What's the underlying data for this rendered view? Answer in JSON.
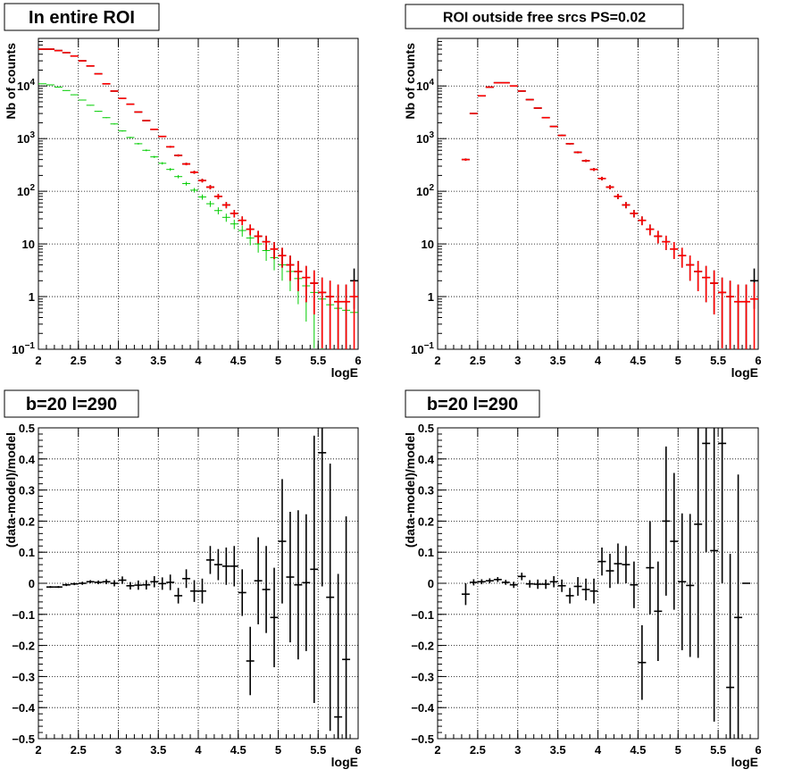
{
  "colors": {
    "data": "#000000",
    "model": "#ff0000",
    "component_blue": "#0000ff",
    "component_green": "#00cc00",
    "grid": "#000000"
  },
  "chart_data": [
    {
      "id": "tl",
      "type": "scatter",
      "title": "In entire ROI",
      "xlabel": "logE",
      "ylabel": "Nb of counts",
      "xlim": [
        2,
        6
      ],
      "ylim": [
        0.1,
        80000
      ],
      "yscale": "log",
      "grid": true,
      "xticks": [
        "2",
        "2.5",
        "3",
        "3.5",
        "4",
        "4.5",
        "5",
        "5.5",
        "6"
      ],
      "yticks": [
        "10⁻¹",
        "1",
        "10",
        "10²",
        "10³",
        "10⁴"
      ],
      "series": [
        {
          "role": "data",
          "x": [
            2.05,
            2.15,
            2.25,
            2.35,
            2.45,
            2.55,
            2.65,
            2.75,
            2.85,
            2.95,
            3.05,
            3.15,
            3.25,
            3.35,
            3.45,
            3.55,
            3.65,
            3.75,
            3.85,
            3.95,
            4.05,
            4.15,
            4.25,
            4.35,
            4.45,
            4.55,
            4.65,
            4.75,
            4.85,
            4.95,
            5.05,
            5.15,
            5.25,
            5.35,
            5.45,
            5.55,
            5.65,
            5.75,
            5.85,
            5.95
          ],
          "y": [
            50000,
            50000,
            47000,
            43000,
            37000,
            30000,
            24000,
            17000,
            11000,
            8000,
            5800,
            4500,
            3200,
            2200,
            1500,
            1100,
            700,
            480,
            330,
            230,
            160,
            120,
            80,
            55,
            38,
            28,
            19,
            14,
            11,
            8,
            6,
            4,
            3,
            2.3,
            1.8,
            1.2,
            1,
            0.8,
            0.8,
            2
          ]
        },
        {
          "role": "model",
          "x": [
            2.05,
            2.15,
            2.25,
            2.35,
            2.45,
            2.55,
            2.65,
            2.75,
            2.85,
            2.95,
            3.05,
            3.15,
            3.25,
            3.35,
            3.45,
            3.55,
            3.65,
            3.75,
            3.85,
            3.95,
            4.05,
            4.15,
            4.25,
            4.35,
            4.45,
            4.55,
            4.65,
            4.75,
            4.85,
            4.95,
            5.05,
            5.15,
            5.25,
            5.35,
            5.45,
            5.55,
            5.65,
            5.75,
            5.85,
            5.95
          ],
          "y": [
            50000,
            50000,
            47000,
            43000,
            37000,
            30000,
            24000,
            17000,
            11000,
            8000,
            5800,
            4500,
            3200,
            2200,
            1500,
            1100,
            700,
            480,
            330,
            230,
            160,
            120,
            80,
            55,
            38,
            28,
            19,
            14,
            11,
            8,
            6,
            4,
            3,
            2.3,
            1.8,
            1.2,
            1,
            0.8,
            0.8,
            1
          ]
        },
        {
          "role": "component_green",
          "x": [
            2.05,
            2.15,
            2.25,
            2.35,
            2.45,
            2.55,
            2.65,
            2.75,
            2.85,
            2.95,
            3.05,
            3.15,
            3.25,
            3.35,
            3.45,
            3.55,
            3.65,
            3.75,
            3.85,
            3.95,
            4.05,
            4.15,
            4.25,
            4.35,
            4.45,
            4.55,
            4.65,
            4.75,
            4.85,
            4.95,
            5.05,
            5.15,
            5.25,
            5.35,
            5.45,
            5.55,
            5.65,
            5.75,
            5.85,
            5.95
          ],
          "y": [
            11000,
            10500,
            9500,
            8200,
            6800,
            5400,
            4300,
            3300,
            2500,
            1900,
            1400,
            1050,
            800,
            600,
            450,
            340,
            260,
            190,
            140,
            105,
            78,
            58,
            43,
            32,
            24,
            18,
            13,
            10,
            7.5,
            5.5,
            4,
            3,
            2.2,
            1.6,
            1.2,
            0.9,
            0.7,
            0.6,
            0.55,
            0.5
          ]
        }
      ]
    },
    {
      "id": "tr",
      "type": "scatter",
      "title": "ROI outside free srcs PS=0.02",
      "xlabel": "logE",
      "ylabel": "Nb of counts",
      "xlim": [
        2,
        6
      ],
      "ylim": [
        0.1,
        80000
      ],
      "yscale": "log",
      "grid": true,
      "xticks": [
        "2",
        "2.5",
        "3",
        "3.5",
        "4",
        "4.5",
        "5",
        "5.5",
        "6"
      ],
      "yticks": [
        "10⁻¹",
        "1",
        "10",
        "10²",
        "10³",
        "10⁴"
      ],
      "series": [
        {
          "role": "data",
          "x": [
            2.35,
            2.45,
            2.55,
            2.65,
            2.75,
            2.85,
            2.95,
            3.05,
            3.15,
            3.25,
            3.35,
            3.45,
            3.55,
            3.65,
            3.75,
            3.85,
            3.95,
            4.05,
            4.15,
            4.25,
            4.35,
            4.45,
            4.55,
            4.65,
            4.75,
            4.85,
            4.95,
            5.05,
            5.15,
            5.25,
            5.35,
            5.45,
            5.55,
            5.65,
            5.75,
            5.85,
            5.95
          ],
          "y": [
            400,
            3000,
            6500,
            9500,
            11500,
            11500,
            10000,
            8000,
            5500,
            3800,
            2500,
            1700,
            1150,
            800,
            550,
            380,
            260,
            175,
            120,
            80,
            55,
            38,
            28,
            19,
            14,
            11,
            8,
            6,
            4,
            3,
            2.3,
            1.8,
            1.2,
            1,
            0.8,
            0.8,
            2
          ]
        },
        {
          "role": "model",
          "x": [
            2.35,
            2.45,
            2.55,
            2.65,
            2.75,
            2.85,
            2.95,
            3.05,
            3.15,
            3.25,
            3.35,
            3.45,
            3.55,
            3.65,
            3.75,
            3.85,
            3.95,
            4.05,
            4.15,
            4.25,
            4.35,
            4.45,
            4.55,
            4.65,
            4.75,
            4.85,
            4.95,
            5.05,
            5.15,
            5.25,
            5.35,
            5.45,
            5.55,
            5.65,
            5.75,
            5.85,
            5.95
          ],
          "y": [
            400,
            3000,
            6500,
            9500,
            11500,
            11500,
            10000,
            8000,
            5500,
            3800,
            2500,
            1700,
            1150,
            800,
            550,
            380,
            260,
            175,
            120,
            80,
            55,
            38,
            28,
            19,
            14,
            11,
            8,
            6,
            4,
            3,
            2.3,
            1.8,
            1.2,
            1,
            0.8,
            0.8,
            0.9
          ]
        }
      ]
    },
    {
      "id": "bl",
      "type": "scatter",
      "title": "b=20 l=290",
      "xlabel": "logE",
      "ylabel": "(data-model)/model",
      "xlim": [
        2,
        6
      ],
      "ylim": [
        -0.5,
        0.5
      ],
      "grid": true,
      "xticks": [
        "2",
        "2.5",
        "3",
        "3.5",
        "4",
        "4.5",
        "5",
        "5.5",
        "6"
      ],
      "yticks": [
        "−0.5",
        "−0.4",
        "−0.3",
        "−0.2",
        "−0.1",
        "0",
        "0.1",
        "0.2",
        "0.3",
        "0.4",
        "0.5"
      ],
      "series": [
        {
          "role": "data",
          "x": [
            2.15,
            2.25,
            2.35,
            2.45,
            2.55,
            2.65,
            2.75,
            2.85,
            2.95,
            3.05,
            3.15,
            3.25,
            3.35,
            3.45,
            3.55,
            3.65,
            3.75,
            3.85,
            3.95,
            4.05,
            4.15,
            4.25,
            4.35,
            4.45,
            4.55,
            4.65,
            4.75,
            4.85,
            4.95,
            5.05,
            5.15,
            5.25,
            5.35,
            5.45,
            5.55,
            5.65,
            5.75,
            5.85
          ],
          "y": [
            -0.012,
            -0.012,
            -0.005,
            -0.002,
            0.0,
            0.005,
            0.003,
            0.005,
            0.0,
            0.01,
            -0.008,
            -0.006,
            -0.005,
            0.005,
            -0.001,
            0.003,
            -0.04,
            0.015,
            -0.025,
            -0.025,
            0.075,
            0.06,
            0.055,
            0.055,
            -0.03,
            -0.25,
            0.008,
            -0.02,
            -0.11,
            0.135,
            0.02,
            -0.005,
            0.002,
            0.045,
            0.42,
            -0.045,
            -0.43,
            -0.245
          ],
          "err": [
            0.003,
            0.003,
            0.004,
            0.004,
            0.005,
            0.005,
            0.006,
            0.008,
            0.01,
            0.012,
            0.012,
            0.015,
            0.015,
            0.018,
            0.02,
            0.025,
            0.025,
            0.03,
            0.035,
            0.04,
            0.045,
            0.05,
            0.06,
            0.065,
            0.075,
            0.11,
            0.14,
            0.14,
            0.16,
            0.2,
            0.21,
            0.24,
            0.22,
            0.43,
            0.43,
            0.43,
            0.46,
            0.46
          ]
        }
      ]
    },
    {
      "id": "br",
      "type": "scatter",
      "title": "b=20 l=290",
      "xlabel": "logE",
      "ylabel": "(data-model)/model",
      "xlim": [
        2,
        6
      ],
      "ylim": [
        -0.5,
        0.5
      ],
      "grid": true,
      "xticks": [
        "2",
        "2.5",
        "3",
        "3.5",
        "4",
        "4.5",
        "5",
        "5.5",
        "6"
      ],
      "yticks": [
        "−0.5",
        "−0.4",
        "−0.3",
        "−0.2",
        "−0.1",
        "0",
        "0.1",
        "0.2",
        "0.3",
        "0.4",
        "0.5"
      ],
      "series": [
        {
          "role": "data",
          "x": [
            2.35,
            2.45,
            2.55,
            2.65,
            2.75,
            2.85,
            2.95,
            3.05,
            3.15,
            3.25,
            3.35,
            3.45,
            3.55,
            3.65,
            3.75,
            3.85,
            3.95,
            4.05,
            4.15,
            4.25,
            4.35,
            4.45,
            4.55,
            4.65,
            4.75,
            4.85,
            4.95,
            5.05,
            5.15,
            5.25,
            5.35,
            5.45,
            5.55,
            5.65,
            5.75,
            5.85
          ],
          "y": [
            -0.035,
            0.003,
            0.005,
            0.008,
            0.012,
            0.003,
            -0.005,
            0.022,
            -0.002,
            -0.003,
            -0.003,
            0.005,
            -0.008,
            -0.04,
            -0.01,
            -0.02,
            -0.025,
            0.07,
            0.04,
            0.063,
            0.06,
            -0.005,
            -0.255,
            0.05,
            -0.09,
            0.2,
            0.135,
            0.005,
            -0.007,
            0.19,
            0.45,
            0.105,
            0.45,
            -0.335,
            -0.11,
            0.0
          ],
          "err": [
            0.035,
            0.01,
            0.008,
            0.008,
            0.008,
            0.008,
            0.01,
            0.012,
            0.012,
            0.015,
            0.015,
            0.018,
            0.02,
            0.025,
            0.03,
            0.035,
            0.04,
            0.045,
            0.055,
            0.065,
            0.06,
            0.075,
            0.12,
            0.15,
            0.16,
            0.24,
            0.22,
            0.22,
            0.23,
            0.43,
            0.35,
            0.55,
            0.45,
            0.43,
            0.46,
            0.0
          ]
        }
      ]
    }
  ]
}
